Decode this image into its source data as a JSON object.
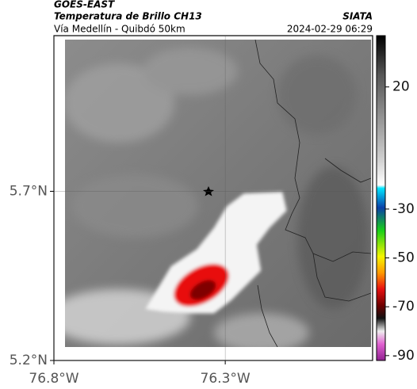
{
  "header": {
    "title": "GOES-EAST",
    "subtitle": "Temperatura de Brillo CH13",
    "route": "Vía Medellín - Quibdó 50km",
    "source": "SIATA",
    "datetime": "2024-02-29 06:29"
  },
  "map": {
    "xlim": [
      -76.8,
      -75.87
    ],
    "ylim": [
      5.2,
      6.16
    ],
    "xticks": [
      {
        "value": -76.8,
        "label": "76.8°W"
      },
      {
        "value": -76.3,
        "label": "76.3°W"
      }
    ],
    "yticks": [
      {
        "value": 5.7,
        "label": "5.7°N"
      },
      {
        "value": 5.2,
        "label": "5.2°N"
      }
    ]
  },
  "colorbar": {
    "lim": [
      41,
      -92
    ],
    "ticks": [
      20,
      -30,
      -50,
      -70,
      -90
    ]
  }
}
